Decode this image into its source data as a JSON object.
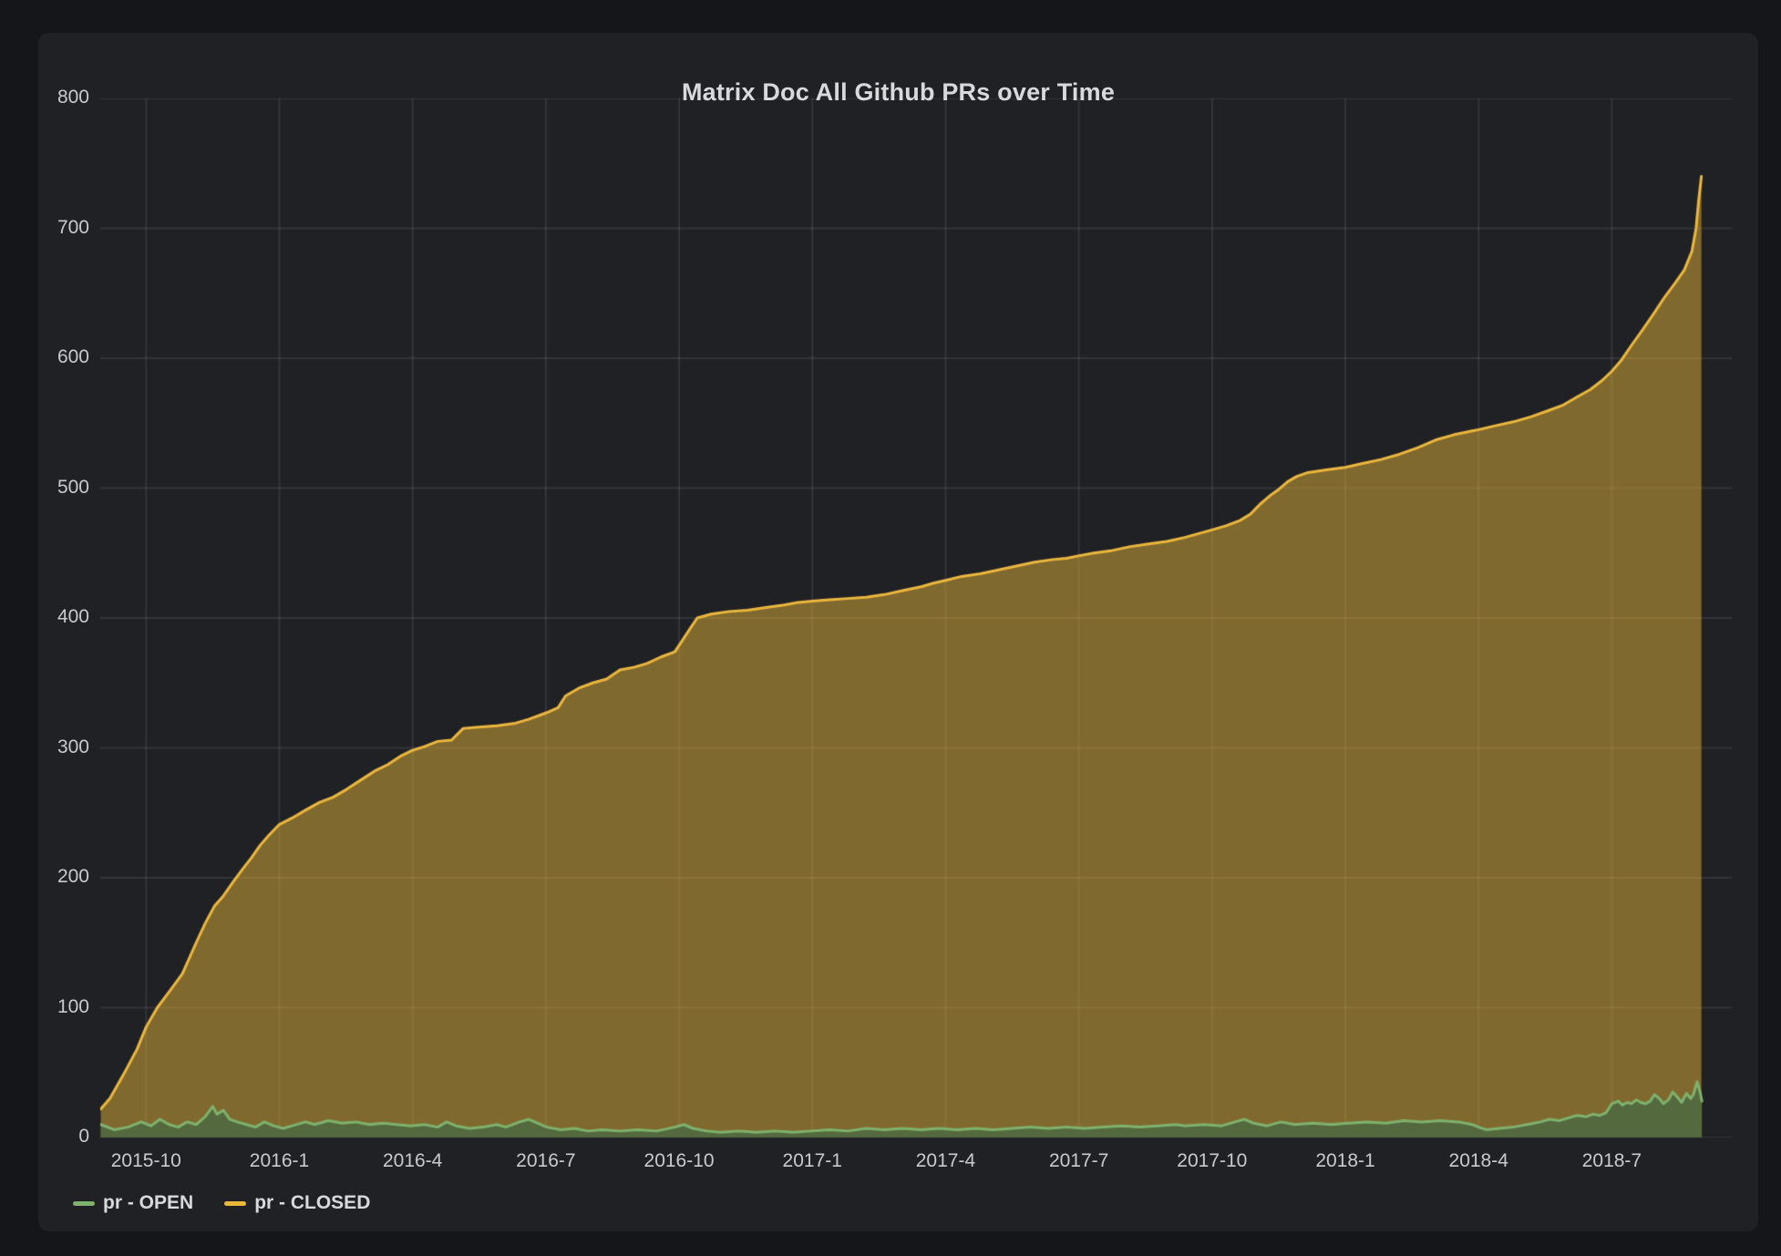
{
  "panel": {
    "title": "Matrix Doc All Github PRs over Time"
  },
  "colors": {
    "page_bg": "#15161A",
    "panel_bg": "#202125",
    "grid": "rgba(255,255,255,0.09)",
    "tick_text": "#C9CACC",
    "title_text": "#D8D9DA",
    "open_line": "#7EB26D",
    "open_fill": "#54693E",
    "closed_line": "#ECB73D",
    "closed_fill": "rgba(234,184,57,0.48)"
  },
  "legend": {
    "items": [
      {
        "label": "pr - OPEN",
        "color": "#7EB26D"
      },
      {
        "label": "pr - CLOSED",
        "color": "#EAB839"
      }
    ]
  },
  "chart_data": {
    "type": "area",
    "title": "Matrix Doc All Github PRs over Time",
    "xlabel": "",
    "ylabel": "",
    "grid": true,
    "legend_position": "bottom-left",
    "x_unit": "decimal_year",
    "x_axis": {
      "min": 2015.664,
      "max": 2018.725,
      "ticks": [
        {
          "t": 2015.75,
          "label": "2015-10"
        },
        {
          "t": 2016.0,
          "label": "2016-1"
        },
        {
          "t": 2016.25,
          "label": "2016-4"
        },
        {
          "t": 2016.5,
          "label": "2016-7"
        },
        {
          "t": 2016.75,
          "label": "2016-10"
        },
        {
          "t": 2017.0,
          "label": "2017-1"
        },
        {
          "t": 2017.25,
          "label": "2017-4"
        },
        {
          "t": 2017.5,
          "label": "2017-7"
        },
        {
          "t": 2017.75,
          "label": "2017-10"
        },
        {
          "t": 2018.0,
          "label": "2018-1"
        },
        {
          "t": 2018.25,
          "label": "2018-4"
        },
        {
          "t": 2018.5,
          "label": "2018-7"
        }
      ]
    },
    "y_axis": {
      "min": 0,
      "max": 800,
      "ticks": [
        {
          "v": 0,
          "label": "0"
        },
        {
          "v": 100,
          "label": "100"
        },
        {
          "v": 200,
          "label": "200"
        },
        {
          "v": 300,
          "label": "300"
        },
        {
          "v": 400,
          "label": "400"
        },
        {
          "v": 500,
          "label": "500"
        },
        {
          "v": 600,
          "label": "600"
        },
        {
          "v": 700,
          "label": "700"
        },
        {
          "v": 800,
          "label": "800"
        }
      ]
    },
    "series": [
      {
        "name": "pr - CLOSED",
        "line_color": "#ECB73D",
        "fill_color": "rgba(234,184,57,0.48)",
        "points": [
          [
            2015.665,
            22
          ],
          [
            2015.682,
            30
          ],
          [
            2015.707,
            48
          ],
          [
            2015.733,
            68
          ],
          [
            2015.75,
            85
          ],
          [
            2015.771,
            100
          ],
          [
            2015.793,
            112
          ],
          [
            2015.818,
            126
          ],
          [
            2015.844,
            150
          ],
          [
            2015.861,
            165
          ],
          [
            2015.878,
            178
          ],
          [
            2015.895,
            186
          ],
          [
            2015.912,
            196
          ],
          [
            2015.93,
            206
          ],
          [
            2015.947,
            215
          ],
          [
            2015.964,
            225
          ],
          [
            2015.981,
            233
          ],
          [
            2016.0,
            241
          ],
          [
            2016.024,
            246
          ],
          [
            2016.049,
            252
          ],
          [
            2016.075,
            258
          ],
          [
            2016.101,
            262
          ],
          [
            2016.126,
            268
          ],
          [
            2016.152,
            275
          ],
          [
            2016.178,
            282
          ],
          [
            2016.203,
            287
          ],
          [
            2016.229,
            294
          ],
          [
            2016.249,
            298
          ],
          [
            2016.272,
            301
          ],
          [
            2016.297,
            305
          ],
          [
            2016.323,
            306
          ],
          [
            2016.345,
            315
          ],
          [
            2016.374,
            316
          ],
          [
            2016.408,
            317
          ],
          [
            2016.443,
            319
          ],
          [
            2016.468,
            322
          ],
          [
            2016.501,
            327
          ],
          [
            2016.523,
            331
          ],
          [
            2016.537,
            340
          ],
          [
            2016.562,
            346
          ],
          [
            2016.588,
            350
          ],
          [
            2016.614,
            353
          ],
          [
            2016.639,
            360
          ],
          [
            2016.665,
            362
          ],
          [
            2016.69,
            365
          ],
          [
            2016.716,
            370
          ],
          [
            2016.742,
            374
          ],
          [
            2016.755,
            382
          ],
          [
            2016.771,
            392
          ],
          [
            2016.784,
            400
          ],
          [
            2016.81,
            403
          ],
          [
            2016.844,
            405
          ],
          [
            2016.878,
            406
          ],
          [
            2016.913,
            408
          ],
          [
            2016.947,
            410
          ],
          [
            2016.973,
            412
          ],
          [
            2017.0,
            413
          ],
          [
            2017.032,
            414
          ],
          [
            2017.067,
            415
          ],
          [
            2017.101,
            416
          ],
          [
            2017.135,
            418
          ],
          [
            2017.169,
            421
          ],
          [
            2017.204,
            424
          ],
          [
            2017.229,
            427
          ],
          [
            2017.25,
            429
          ],
          [
            2017.28,
            432
          ],
          [
            2017.315,
            434
          ],
          [
            2017.349,
            437
          ],
          [
            2017.383,
            440
          ],
          [
            2017.417,
            443
          ],
          [
            2017.451,
            445
          ],
          [
            2017.477,
            446
          ],
          [
            2017.501,
            448
          ],
          [
            2017.528,
            450
          ],
          [
            2017.563,
            452
          ],
          [
            2017.597,
            455
          ],
          [
            2017.631,
            457
          ],
          [
            2017.665,
            459
          ],
          [
            2017.699,
            462
          ],
          [
            2017.725,
            465
          ],
          [
            2017.751,
            468
          ],
          [
            2017.776,
            471
          ],
          [
            2017.802,
            475
          ],
          [
            2017.822,
            480
          ],
          [
            2017.841,
            488
          ],
          [
            2017.858,
            494
          ],
          [
            2017.875,
            499
          ],
          [
            2017.892,
            505
          ],
          [
            2017.909,
            509
          ],
          [
            2017.93,
            512
          ],
          [
            2017.964,
            514
          ],
          [
            2018.0,
            516
          ],
          [
            2018.032,
            519
          ],
          [
            2018.067,
            522
          ],
          [
            2018.101,
            526
          ],
          [
            2018.135,
            531
          ],
          [
            2018.169,
            537
          ],
          [
            2018.203,
            541
          ],
          [
            2018.238,
            544
          ],
          [
            2018.25,
            545
          ],
          [
            2018.281,
            548
          ],
          [
            2018.315,
            551
          ],
          [
            2018.349,
            555
          ],
          [
            2018.383,
            560
          ],
          [
            2018.409,
            564
          ],
          [
            2018.434,
            570
          ],
          [
            2018.46,
            576
          ],
          [
            2018.482,
            583
          ],
          [
            2018.5,
            590
          ],
          [
            2018.517,
            598
          ],
          [
            2018.537,
            610
          ],
          [
            2018.558,
            622
          ],
          [
            2018.578,
            634
          ],
          [
            2018.599,
            647
          ],
          [
            2018.619,
            658
          ],
          [
            2018.636,
            668
          ],
          [
            2018.65,
            682
          ],
          [
            2018.658,
            700
          ],
          [
            2018.663,
            722
          ],
          [
            2018.668,
            740
          ]
        ]
      },
      {
        "name": "pr - OPEN",
        "line_color": "#7EB26D",
        "fill_color": "#54693E",
        "points": [
          [
            2015.665,
            10
          ],
          [
            2015.69,
            6
          ],
          [
            2015.716,
            8
          ],
          [
            2015.741,
            12
          ],
          [
            2015.759,
            9
          ],
          [
            2015.776,
            14
          ],
          [
            2015.793,
            10
          ],
          [
            2015.81,
            8
          ],
          [
            2015.827,
            12
          ],
          [
            2015.844,
            10
          ],
          [
            2015.861,
            16
          ],
          [
            2015.875,
            24
          ],
          [
            2015.883,
            18
          ],
          [
            2015.895,
            21
          ],
          [
            2015.907,
            14
          ],
          [
            2015.921,
            12
          ],
          [
            2015.938,
            10
          ],
          [
            2015.955,
            8
          ],
          [
            2015.972,
            12
          ],
          [
            2015.989,
            9
          ],
          [
            2016.007,
            7
          ],
          [
            2016.024,
            9
          ],
          [
            2016.049,
            12
          ],
          [
            2016.066,
            10
          ],
          [
            2016.092,
            13
          ],
          [
            2016.118,
            11
          ],
          [
            2016.143,
            12
          ],
          [
            2016.169,
            10
          ],
          [
            2016.195,
            11
          ],
          [
            2016.22,
            10
          ],
          [
            2016.246,
            9
          ],
          [
            2016.272,
            10
          ],
          [
            2016.297,
            8
          ],
          [
            2016.314,
            12
          ],
          [
            2016.331,
            9
          ],
          [
            2016.357,
            7
          ],
          [
            2016.383,
            8
          ],
          [
            2016.408,
            10
          ],
          [
            2016.425,
            8
          ],
          [
            2016.451,
            12
          ],
          [
            2016.468,
            14
          ],
          [
            2016.485,
            11
          ],
          [
            2016.502,
            8
          ],
          [
            2016.528,
            6
          ],
          [
            2016.554,
            7
          ],
          [
            2016.579,
            5
          ],
          [
            2016.605,
            6
          ],
          [
            2016.639,
            5
          ],
          [
            2016.673,
            6
          ],
          [
            2016.708,
            5
          ],
          [
            2016.742,
            8
          ],
          [
            2016.759,
            10
          ],
          [
            2016.776,
            7
          ],
          [
            2016.802,
            5
          ],
          [
            2016.827,
            4
          ],
          [
            2016.862,
            5
          ],
          [
            2016.896,
            4
          ],
          [
            2016.93,
            5
          ],
          [
            2016.964,
            4
          ],
          [
            2016.998,
            5
          ],
          [
            2017.033,
            6
          ],
          [
            2017.067,
            5
          ],
          [
            2017.101,
            7
          ],
          [
            2017.135,
            6
          ],
          [
            2017.169,
            7
          ],
          [
            2017.204,
            6
          ],
          [
            2017.238,
            7
          ],
          [
            2017.272,
            6
          ],
          [
            2017.306,
            7
          ],
          [
            2017.34,
            6
          ],
          [
            2017.375,
            7
          ],
          [
            2017.409,
            8
          ],
          [
            2017.443,
            7
          ],
          [
            2017.477,
            8
          ],
          [
            2017.511,
            7
          ],
          [
            2017.546,
            8
          ],
          [
            2017.58,
            9
          ],
          [
            2017.614,
            8
          ],
          [
            2017.648,
            9
          ],
          [
            2017.682,
            10
          ],
          [
            2017.699,
            9
          ],
          [
            2017.734,
            10
          ],
          [
            2017.768,
            9
          ],
          [
            2017.793,
            12
          ],
          [
            2017.811,
            14
          ],
          [
            2017.828,
            11
          ],
          [
            2017.853,
            9
          ],
          [
            2017.879,
            12
          ],
          [
            2017.905,
            10
          ],
          [
            2017.939,
            11
          ],
          [
            2017.973,
            10
          ],
          [
            2018.007,
            11
          ],
          [
            2018.041,
            12
          ],
          [
            2018.076,
            11
          ],
          [
            2018.11,
            13
          ],
          [
            2018.144,
            12
          ],
          [
            2018.178,
            13
          ],
          [
            2018.212,
            12
          ],
          [
            2018.238,
            10
          ],
          [
            2018.25,
            8
          ],
          [
            2018.264,
            6
          ],
          [
            2018.289,
            7
          ],
          [
            2018.315,
            8
          ],
          [
            2018.341,
            10
          ],
          [
            2018.366,
            12
          ],
          [
            2018.383,
            14
          ],
          [
            2018.401,
            13
          ],
          [
            2018.418,
            15
          ],
          [
            2018.435,
            17
          ],
          [
            2018.452,
            16
          ],
          [
            2018.465,
            18
          ],
          [
            2018.477,
            17
          ],
          [
            2018.489,
            19
          ],
          [
            2018.5,
            26
          ],
          [
            2018.512,
            28
          ],
          [
            2018.52,
            25
          ],
          [
            2018.529,
            27
          ],
          [
            2018.537,
            26
          ],
          [
            2018.546,
            29
          ],
          [
            2018.554,
            27
          ],
          [
            2018.563,
            26
          ],
          [
            2018.572,
            28
          ],
          [
            2018.58,
            33
          ],
          [
            2018.589,
            30
          ],
          [
            2018.597,
            26
          ],
          [
            2018.606,
            29
          ],
          [
            2018.614,
            35
          ],
          [
            2018.623,
            31
          ],
          [
            2018.631,
            27
          ],
          [
            2018.64,
            34
          ],
          [
            2018.648,
            30
          ],
          [
            2018.653,
            33
          ],
          [
            2018.66,
            43
          ],
          [
            2018.665,
            36
          ],
          [
            2018.669,
            28
          ]
        ]
      }
    ]
  }
}
